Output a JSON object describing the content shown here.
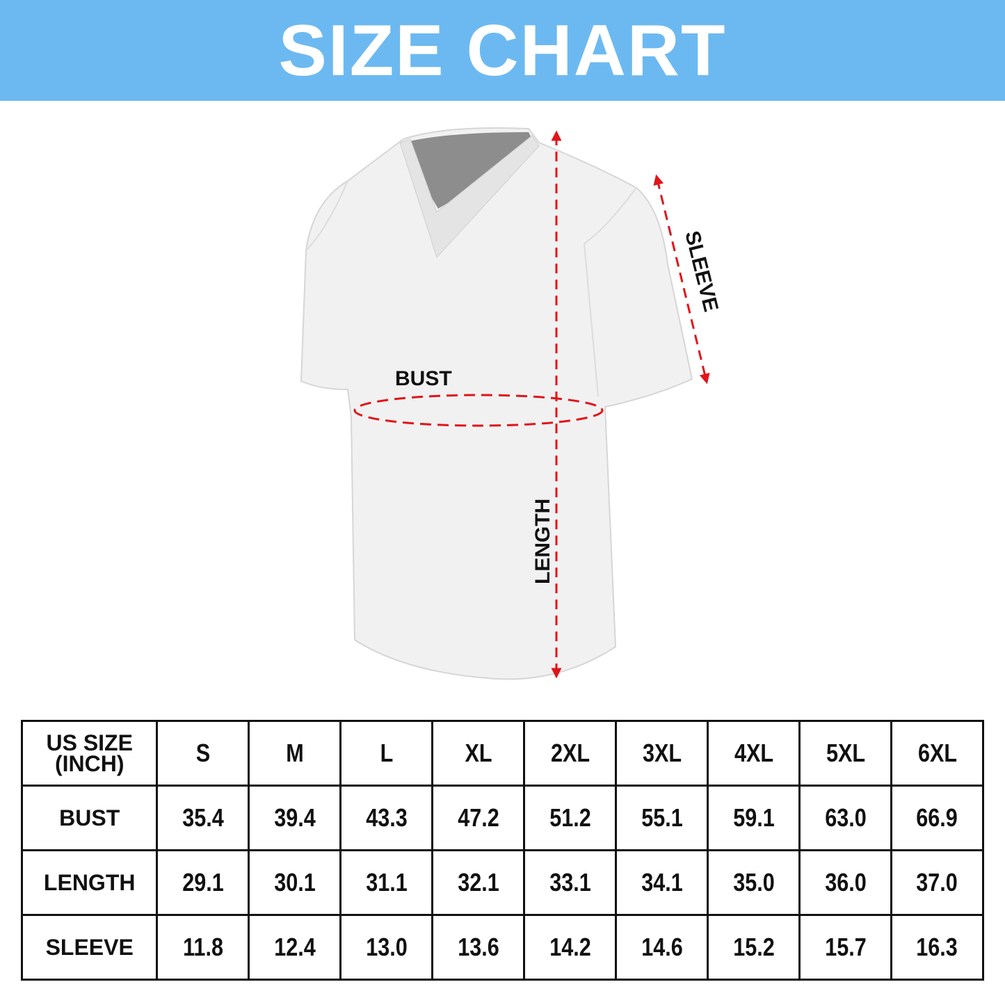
{
  "title": "SIZE CHART",
  "diagram_labels": {
    "bust": "BUST",
    "length": "LENGTH",
    "sleeve": "SLEEVE"
  },
  "colors": {
    "banner": "#6cb9f1",
    "measure_lines": "#e0141b"
  },
  "table": {
    "corner_header": "US SIZE (INCH)",
    "sizes": [
      "S",
      "M",
      "L",
      "XL",
      "2XL",
      "3XL",
      "4XL",
      "5XL",
      "6XL"
    ],
    "rows": [
      {
        "label": "BUST",
        "values": [
          "35.4",
          "39.4",
          "43.3",
          "47.2",
          "51.2",
          "55.1",
          "59.1",
          "63.0",
          "66.9"
        ]
      },
      {
        "label": "LENGTH",
        "values": [
          "29.1",
          "30.1",
          "31.1",
          "32.1",
          "33.1",
          "34.1",
          "35.0",
          "36.0",
          "37.0"
        ]
      },
      {
        "label": "SLEEVE",
        "values": [
          "11.8",
          "12.4",
          "13.0",
          "13.6",
          "14.2",
          "14.6",
          "15.2",
          "15.7",
          "16.3"
        ]
      }
    ]
  }
}
